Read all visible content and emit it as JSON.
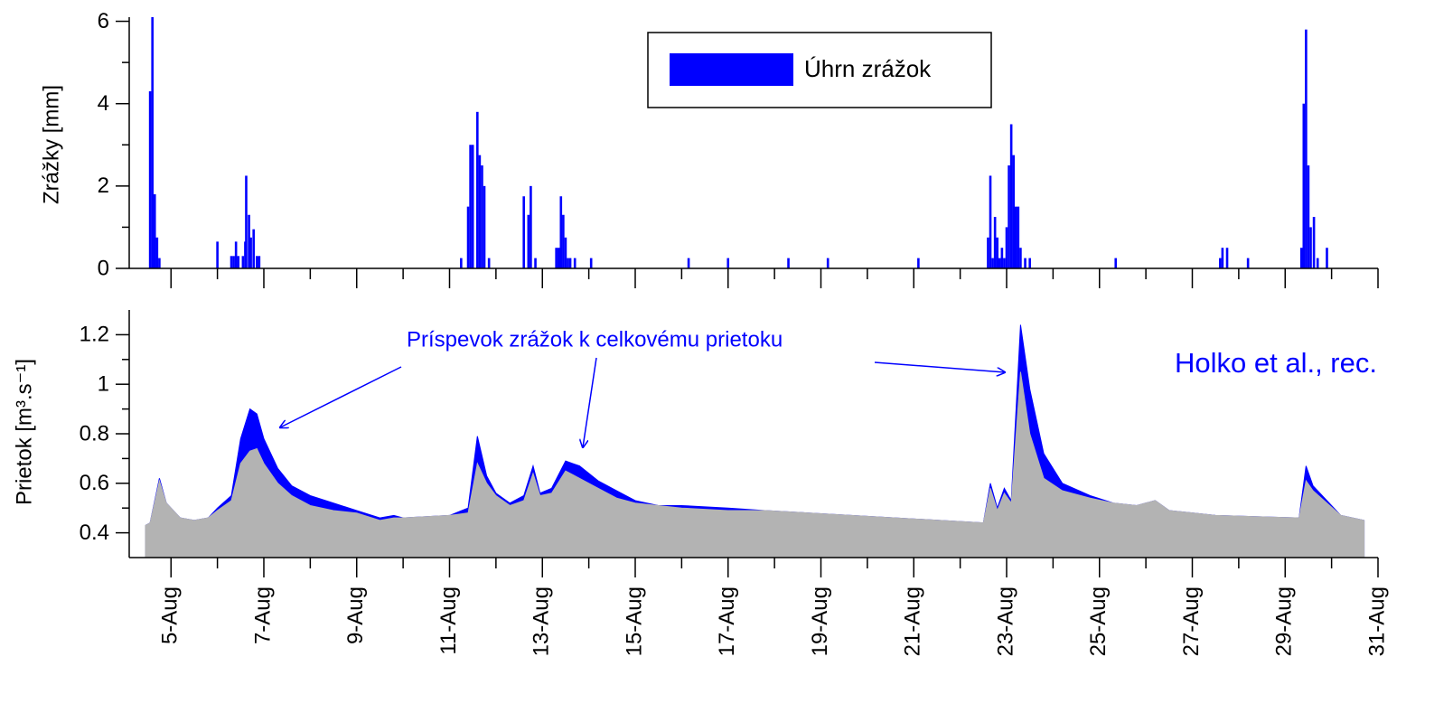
{
  "chart_data": [
    {
      "type": "bar",
      "y_label": "Zrážky [mm]",
      "legend": "upper center",
      "x": [
        4.55,
        4.6,
        4.65,
        4.7,
        4.75,
        6.0,
        6.3,
        6.35,
        6.4,
        6.45,
        6.55,
        6.6,
        6.62,
        6.68,
        6.72,
        6.78,
        6.85,
        6.9,
        11.25,
        11.4,
        11.45,
        11.5,
        11.6,
        11.65,
        11.7,
        11.75,
        11.85,
        12.6,
        12.7,
        12.75,
        12.85,
        13.3,
        13.35,
        13.4,
        13.45,
        13.5,
        13.55,
        13.6,
        13.7,
        14.05,
        16.15,
        17.0,
        18.3,
        19.15,
        21.1,
        22.6,
        22.65,
        22.7,
        22.75,
        22.8,
        22.85,
        22.9,
        22.95,
        23.0,
        23.05,
        23.1,
        23.15,
        23.2,
        23.25,
        23.3,
        23.4,
        23.5,
        25.35,
        27.6,
        27.65,
        27.75,
        28.2,
        29.35,
        29.4,
        29.45,
        29.5,
        29.55,
        29.62,
        29.7,
        29.9
      ],
      "series": [
        {
          "name": "Úhrn zrážok",
          "color": "#0000ff",
          "values": [
            4.3,
            6.1,
            1.8,
            0.75,
            0.25,
            0.65,
            0.3,
            0.3,
            0.65,
            0.3,
            0.3,
            0.65,
            2.25,
            1.3,
            0.75,
            0.95,
            0.3,
            0.3,
            0.25,
            1.5,
            3.0,
            3.0,
            3.8,
            2.75,
            2.5,
            2.0,
            0.25,
            1.75,
            1.3,
            2.0,
            0.25,
            0.5,
            0.5,
            1.75,
            1.3,
            0.75,
            0.25,
            0.25,
            0.25,
            0.25,
            0.25,
            0.25,
            0.25,
            0.25,
            0.25,
            0.75,
            2.25,
            0.25,
            1.25,
            0.75,
            0.25,
            0.5,
            0.25,
            1.0,
            2.5,
            3.5,
            2.75,
            1.5,
            1.5,
            0.5,
            0.25,
            0.25,
            0.25,
            0.25,
            0.5,
            0.5,
            0.25,
            0.5,
            4.0,
            5.8,
            2.5,
            1.0,
            1.25,
            0.25,
            0.5
          ]
        }
      ],
      "xlim": [
        4.1,
        31
      ],
      "xticks": [
        5,
        7,
        9,
        11,
        13,
        15,
        17,
        19,
        21,
        23,
        25,
        27,
        29,
        31
      ],
      "ylim": [
        0,
        6.1
      ],
      "yticks": [
        0,
        2,
        4,
        6
      ]
    },
    {
      "type": "area",
      "y_label": "Prietok [m³.s⁻¹]",
      "annotations": [
        "Príspevok zrážok k celkovému prietoku",
        "Holko et al., rec."
      ],
      "x": [
        4.45,
        4.55,
        4.75,
        4.9,
        5.2,
        5.5,
        5.8,
        6.0,
        6.3,
        6.5,
        6.7,
        6.85,
        7.0,
        7.3,
        7.6,
        8.0,
        8.5,
        9.0,
        9.5,
        9.8,
        10.0,
        11.0,
        11.4,
        11.6,
        11.8,
        12.0,
        12.3,
        12.6,
        12.8,
        12.95,
        13.2,
        13.5,
        13.8,
        14.2,
        14.6,
        15.0,
        15.5,
        16.0,
        17.0,
        17.8,
        22.5,
        22.65,
        22.8,
        22.95,
        23.1,
        23.3,
        23.5,
        23.8,
        24.2,
        24.8,
        25.3,
        25.8,
        26.2,
        26.5,
        27.0,
        27.5,
        29.3,
        29.45,
        29.6,
        29.9,
        30.2,
        30.7
      ],
      "series": [
        {
          "color": "#0000ff",
          "values": [
            0.43,
            0.44,
            0.62,
            0.52,
            0.46,
            0.45,
            0.46,
            0.5,
            0.55,
            0.78,
            0.9,
            0.88,
            0.78,
            0.66,
            0.59,
            0.55,
            0.52,
            0.49,
            0.46,
            0.47,
            0.46,
            0.47,
            0.5,
            0.79,
            0.63,
            0.56,
            0.52,
            0.55,
            0.67,
            0.56,
            0.58,
            0.69,
            0.67,
            0.61,
            0.57,
            0.53,
            0.51,
            0.51,
            0.5,
            0.49,
            0.44,
            0.6,
            0.5,
            0.58,
            0.53,
            1.24,
            0.98,
            0.72,
            0.6,
            0.55,
            0.52,
            0.51,
            0.53,
            0.49,
            0.48,
            0.47,
            0.46,
            0.67,
            0.59,
            0.53,
            0.47,
            0.45
          ]
        },
        {
          "color": "#b3b3b3",
          "values": [
            0.43,
            0.44,
            0.61,
            0.52,
            0.46,
            0.45,
            0.46,
            0.49,
            0.53,
            0.68,
            0.73,
            0.74,
            0.68,
            0.6,
            0.55,
            0.51,
            0.49,
            0.48,
            0.45,
            0.46,
            0.46,
            0.47,
            0.48,
            0.68,
            0.6,
            0.55,
            0.51,
            0.53,
            0.64,
            0.55,
            0.56,
            0.65,
            0.62,
            0.58,
            0.54,
            0.52,
            0.51,
            0.5,
            0.49,
            0.49,
            0.44,
            0.58,
            0.49,
            0.56,
            0.52,
            1.05,
            0.8,
            0.62,
            0.57,
            0.54,
            0.52,
            0.51,
            0.53,
            0.49,
            0.48,
            0.47,
            0.46,
            0.61,
            0.57,
            0.52,
            0.47,
            0.45
          ]
        }
      ],
      "xlim": [
        4.1,
        31
      ],
      "xticks": [
        {
          "value": 5,
          "label": "5-Aug"
        },
        {
          "value": 7,
          "label": "7-Aug"
        },
        {
          "value": 9,
          "label": "9-Aug"
        },
        {
          "value": 11,
          "label": "11-Aug"
        },
        {
          "value": 13,
          "label": "13-Aug"
        },
        {
          "value": 15,
          "label": "15-Aug"
        },
        {
          "value": 17,
          "label": "17-Aug"
        },
        {
          "value": 19,
          "label": "19-Aug"
        },
        {
          "value": 21,
          "label": "21-Aug"
        },
        {
          "value": 23,
          "label": "23-Aug"
        },
        {
          "value": 25,
          "label": "25-Aug"
        },
        {
          "value": 27,
          "label": "27-Aug"
        },
        {
          "value": 29,
          "label": "29-Aug"
        },
        {
          "value": 31,
          "label": "31-Aug"
        }
      ],
      "ylim": [
        0.3,
        1.3
      ],
      "yticks": [
        0.4,
        0.6,
        0.8,
        1,
        1.2
      ]
    }
  ]
}
